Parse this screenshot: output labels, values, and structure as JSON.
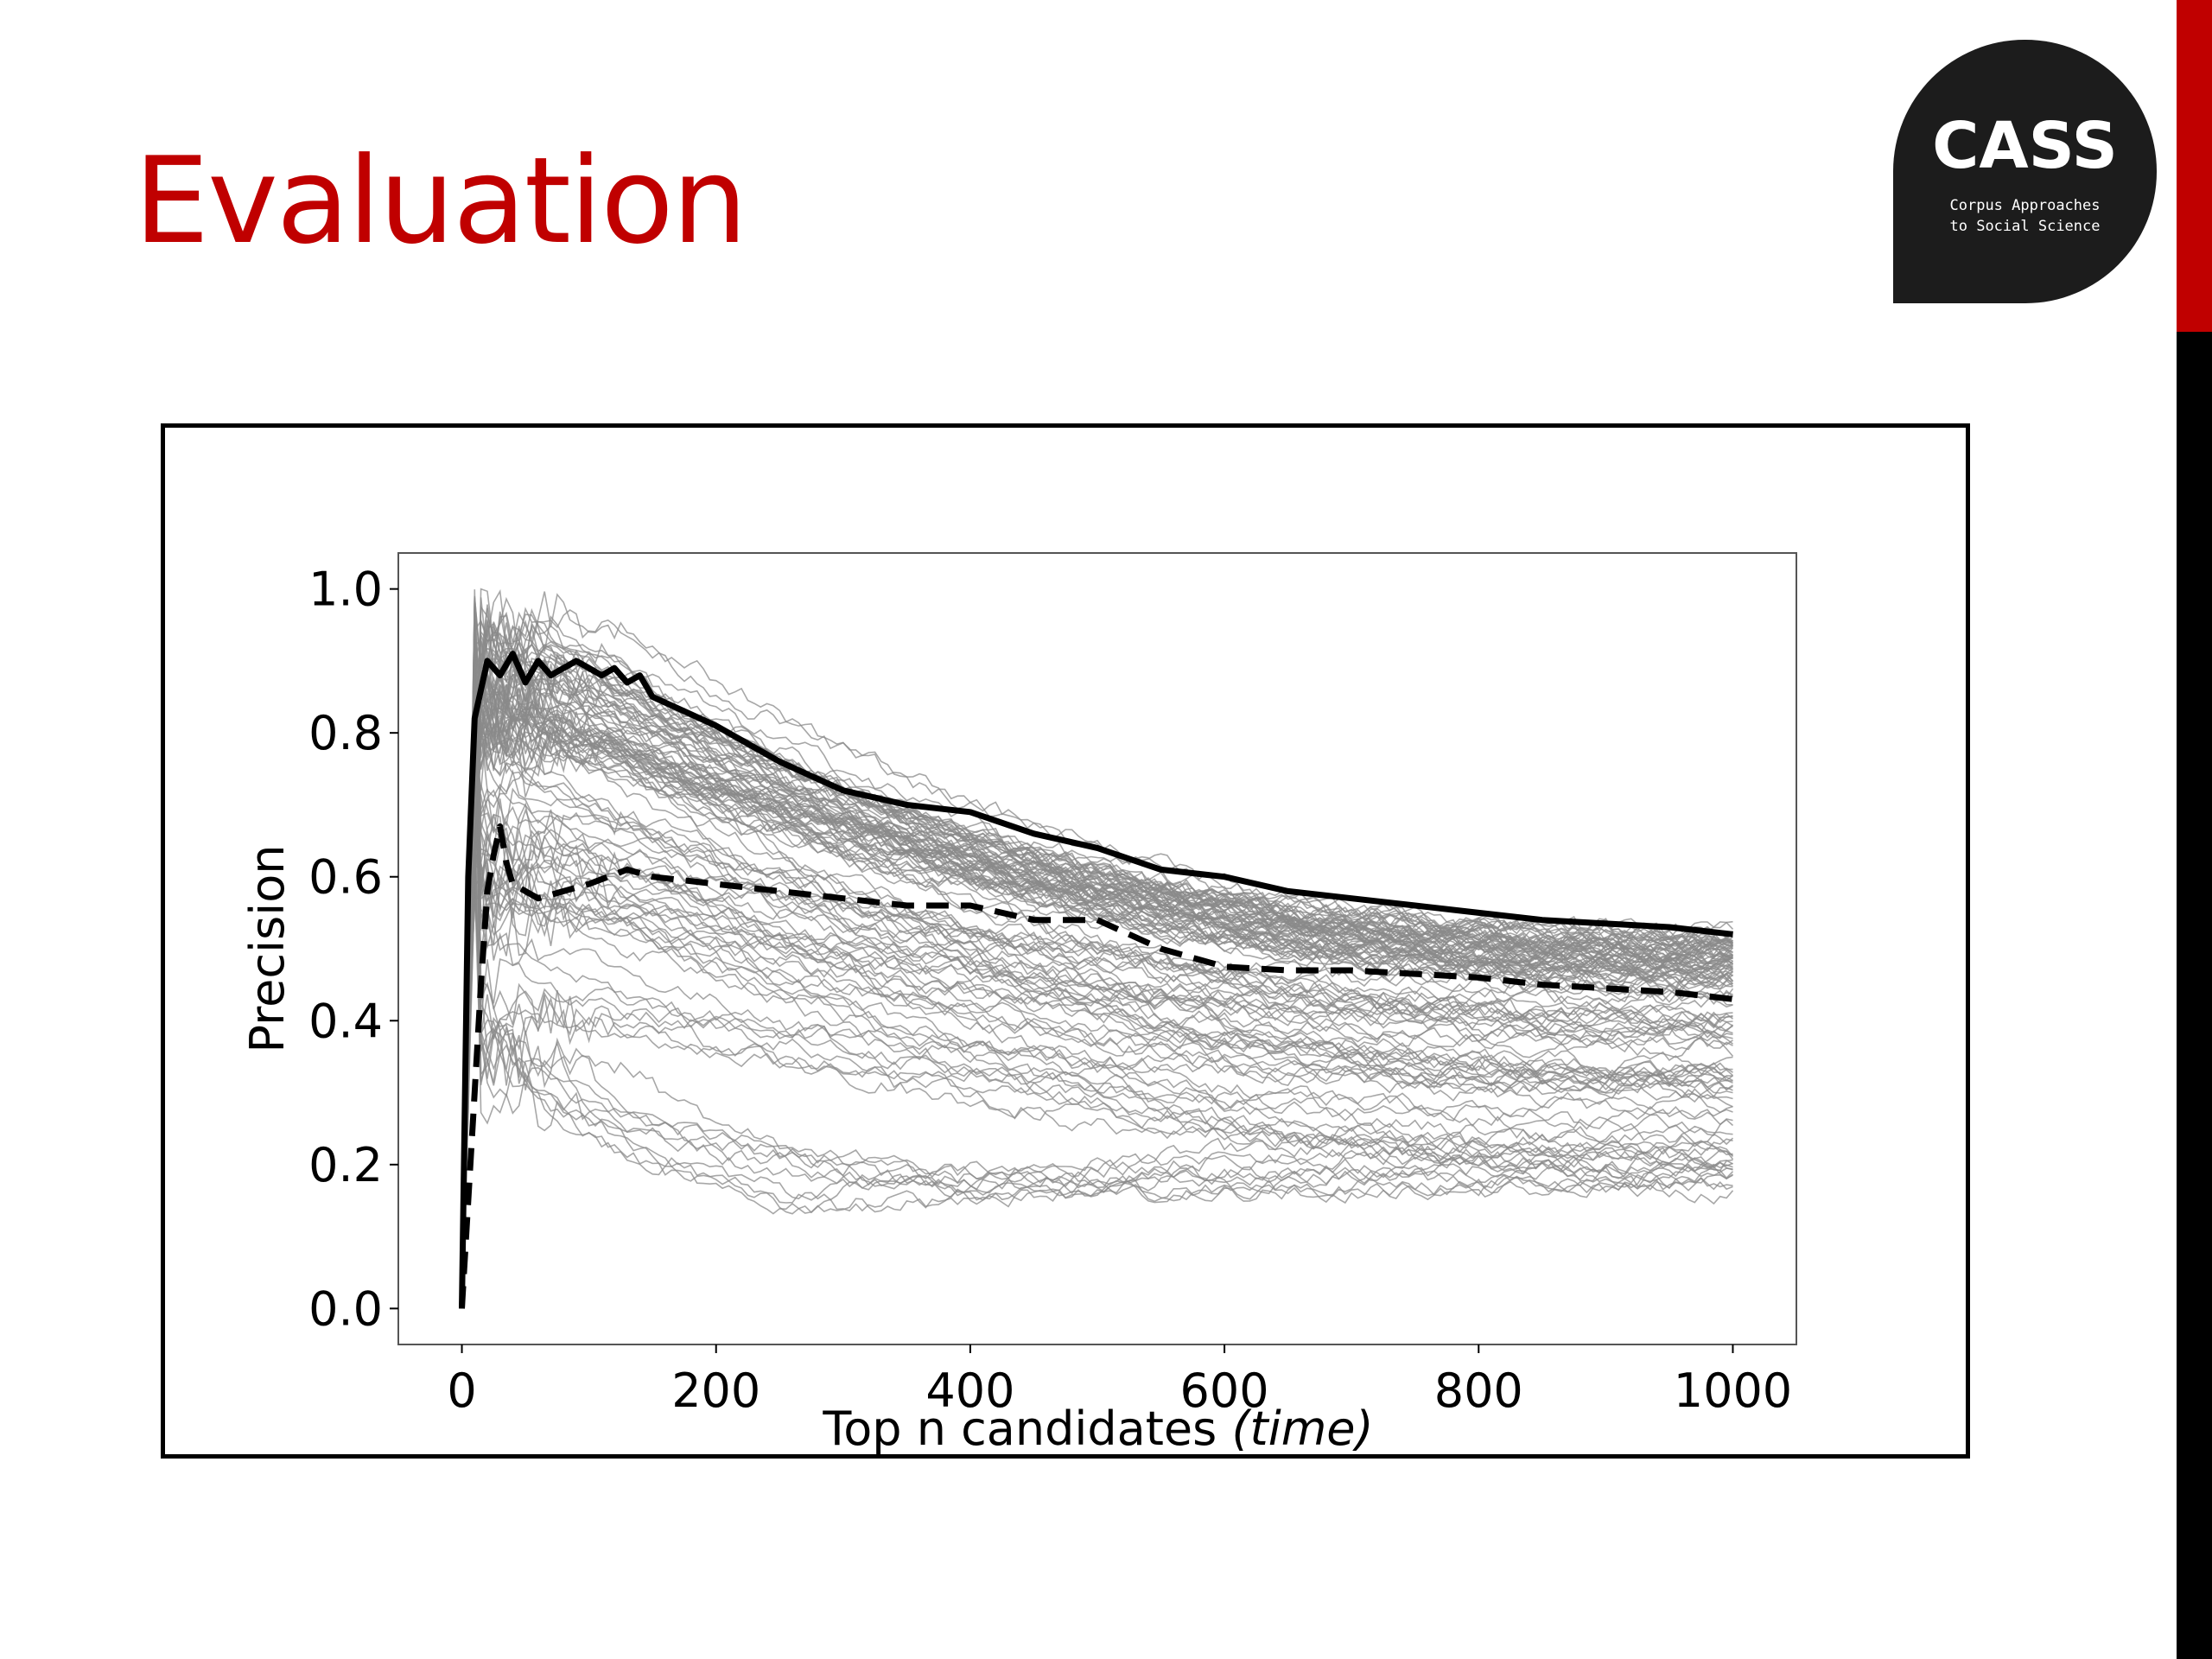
{
  "slide": {
    "title": "Evaluation"
  },
  "logo": {
    "name": "CASS",
    "line1": "Corpus Approaches",
    "line2": "to Social Science"
  },
  "colors": {
    "title": "#c00000",
    "edge_top": "#c00000",
    "edge_bottom": "#000000",
    "logo_bg": "#1c1c1c",
    "ensemble": "#8a8a8a",
    "highlight": "#000000"
  },
  "chart_data": {
    "type": "line",
    "title": "",
    "xlabel": "Top n candidates",
    "xlabel_italic": "(time)",
    "ylabel": "Precision",
    "xlim": [
      -50,
      1050
    ],
    "ylim": [
      -0.05,
      1.05
    ],
    "xticks": [
      0,
      200,
      400,
      600,
      800,
      1000
    ],
    "yticks": [
      0.0,
      0.2,
      0.4,
      0.6,
      0.8,
      1.0
    ],
    "xtick_labels": [
      "0",
      "200",
      "400",
      "600",
      "800",
      "1000"
    ],
    "ytick_labels": [
      "0.0",
      "0.2",
      "0.4",
      "0.6",
      "0.8",
      "1.0"
    ],
    "grid": false,
    "legend": "none",
    "ensemble_count": 120,
    "highlight_series": [
      {
        "style": "solid",
        "x": [
          0,
          5,
          10,
          20,
          30,
          40,
          50,
          60,
          70,
          80,
          90,
          100,
          110,
          120,
          130,
          140,
          150,
          175,
          200,
          250,
          300,
          350,
          400,
          450,
          500,
          550,
          600,
          650,
          700,
          750,
          800,
          850,
          900,
          950,
          1000
        ],
        "y": [
          0.0,
          0.6,
          0.82,
          0.9,
          0.88,
          0.91,
          0.87,
          0.9,
          0.88,
          0.89,
          0.9,
          0.89,
          0.88,
          0.89,
          0.87,
          0.88,
          0.85,
          0.83,
          0.81,
          0.76,
          0.72,
          0.7,
          0.69,
          0.66,
          0.64,
          0.61,
          0.6,
          0.58,
          0.57,
          0.56,
          0.55,
          0.54,
          0.535,
          0.53,
          0.52
        ]
      },
      {
        "style": "dashed",
        "x": [
          0,
          5,
          10,
          15,
          20,
          25,
          30,
          35,
          40,
          50,
          60,
          80,
          100,
          130,
          150,
          200,
          250,
          300,
          350,
          400,
          450,
          500,
          550,
          600,
          650,
          700,
          750,
          800,
          850,
          900,
          950,
          1000
        ],
        "y": [
          0.0,
          0.15,
          0.3,
          0.45,
          0.58,
          0.63,
          0.67,
          0.62,
          0.59,
          0.58,
          0.57,
          0.58,
          0.59,
          0.61,
          0.6,
          0.59,
          0.58,
          0.57,
          0.56,
          0.56,
          0.54,
          0.54,
          0.5,
          0.475,
          0.47,
          0.47,
          0.465,
          0.46,
          0.45,
          0.445,
          0.44,
          0.43
        ]
      }
    ]
  }
}
